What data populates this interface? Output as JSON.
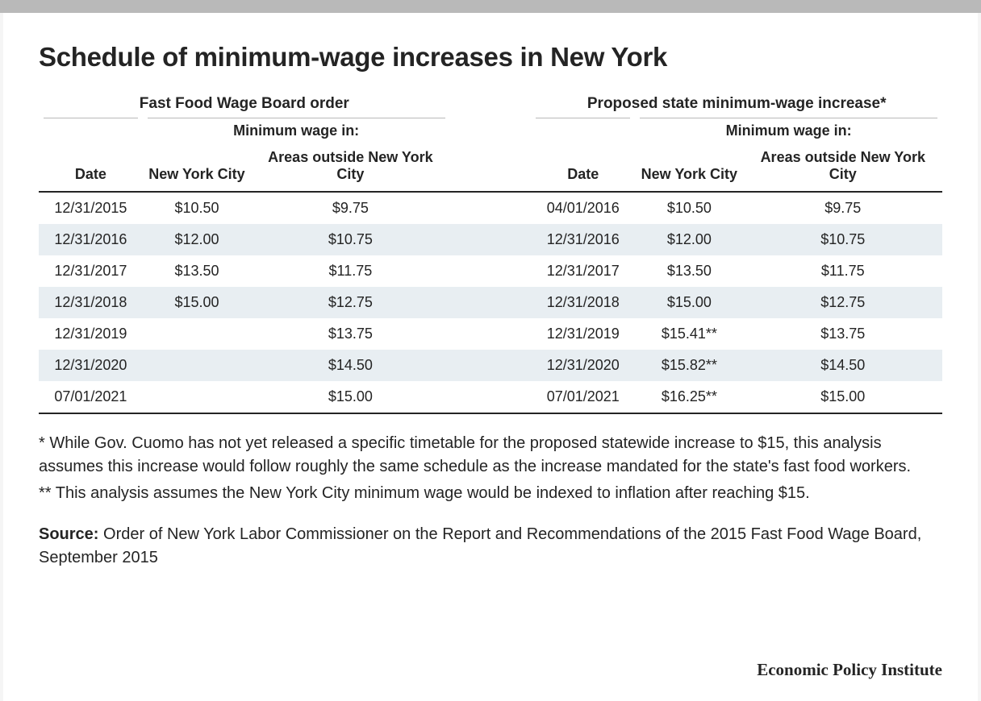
{
  "title": "Schedule of minimum-wage increases in New York",
  "table": {
    "group_headers": {
      "left": "Fast Food Wage Board order",
      "right": "Proposed state minimum-wage increase*"
    },
    "sub_header": "Minimum wage in:",
    "col_headers": {
      "date": "Date",
      "nyc": "New York City",
      "outside": "Areas outside New York City"
    },
    "rows": [
      {
        "l_date": "12/31/2015",
        "l_nyc": "$10.50",
        "l_out": "$9.75",
        "r_date": "04/01/2016",
        "r_nyc": "$10.50",
        "r_out": "$9.75"
      },
      {
        "l_date": "12/31/2016",
        "l_nyc": "$12.00",
        "l_out": "$10.75",
        "r_date": "12/31/2016",
        "r_nyc": "$12.00",
        "r_out": "$10.75"
      },
      {
        "l_date": "12/31/2017",
        "l_nyc": "$13.50",
        "l_out": "$11.75",
        "r_date": "12/31/2017",
        "r_nyc": "$13.50",
        "r_out": "$11.75"
      },
      {
        "l_date": "12/31/2018",
        "l_nyc": "$15.00",
        "l_out": "$12.75",
        "r_date": "12/31/2018",
        "r_nyc": "$15.00",
        "r_out": "$12.75"
      },
      {
        "l_date": "12/31/2019",
        "l_nyc": "",
        "l_out": "$13.75",
        "r_date": "12/31/2019",
        "r_nyc": "$15.41**",
        "r_out": "$13.75"
      },
      {
        "l_date": "12/31/2020",
        "l_nyc": "",
        "l_out": "$14.50",
        "r_date": "12/31/2020",
        "r_nyc": "$15.82**",
        "r_out": "$14.50"
      },
      {
        "l_date": "07/01/2021",
        "l_nyc": "",
        "l_out": "$15.00",
        "r_date": "07/01/2021",
        "r_nyc": "$16.25**",
        "r_out": "$15.00"
      }
    ],
    "colors": {
      "alt_row_bg": "#e8eef2",
      "border_dark": "#242424",
      "border_light": "#b9b9b9",
      "text": "#242424",
      "page_bg": "#f5f5f5"
    }
  },
  "notes": {
    "n1": "* While Gov. Cuomo has not yet released a specific timetable for the proposed statewide increase to $15, this analysis assumes this increase would follow roughly the same schedule as the increase mandated for the state's fast food workers.",
    "n2": "** This analysis assumes the New York City minimum wage would be indexed to inflation after reaching $15."
  },
  "source": {
    "label": "Source:",
    "text": " Order of New York Labor Commissioner on the Report and Recommendations of the 2015 Fast Food Wage Board, September 2015"
  },
  "attribution": "Economic Policy Institute"
}
